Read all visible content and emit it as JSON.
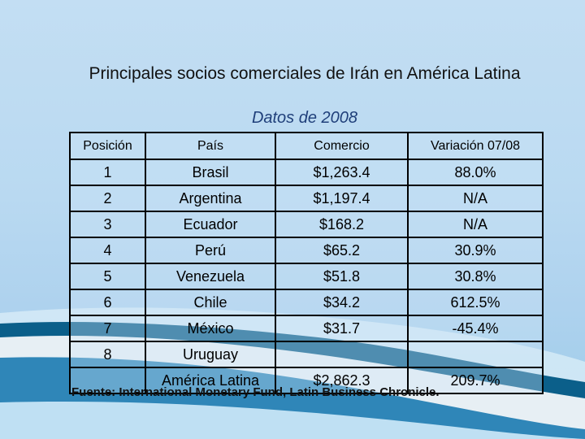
{
  "title": "Principales socios comerciales de Irán en América Latina",
  "subtitle": "Datos de 2008",
  "table": {
    "headers": [
      "Posición",
      "País",
      "Comercio",
      "Variación 07/08"
    ],
    "rows": [
      [
        "1",
        "Brasil",
        "$1,263.4",
        "88.0%"
      ],
      [
        "2",
        "Argentina",
        "$1,197.4",
        "N/A"
      ],
      [
        "3",
        "Ecuador",
        "$168.2",
        "N/A"
      ],
      [
        "4",
        "Perú",
        "$65.2",
        "30.9%"
      ],
      [
        "5",
        "Venezuela",
        "$51.8",
        "30.8%"
      ],
      [
        "6",
        "Chile",
        "$34.2",
        "612.5%"
      ],
      [
        "7",
        "México",
        "$31.7",
        "-45.4%"
      ],
      [
        "8",
        "Uruguay",
        "",
        ""
      ],
      [
        "",
        "América Latina",
        "$2,862.3",
        "209.7%"
      ]
    ]
  },
  "source": "Fuente: International Monetary Fund, Latin Business Chronicle.",
  "colors": {
    "background": "#b9d9f1",
    "wave_dark": "#0b5f8a",
    "wave_light": "#ffffff"
  }
}
